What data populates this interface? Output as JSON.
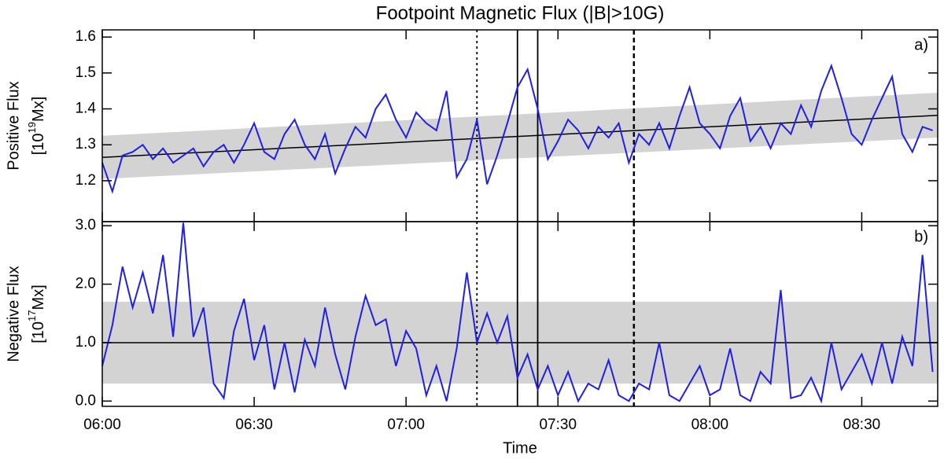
{
  "chart_data": [
    {
      "type": "line",
      "title": "Footpoint Magnetic Flux (|B|>10G)",
      "panel_label": "a)",
      "ylabel": "Positive Flux",
      "yunit": [
        "[10",
        "19",
        "Mx]"
      ],
      "x": [
        "06:00",
        "06:02",
        "06:04",
        "06:06",
        "06:08",
        "06:10",
        "06:12",
        "06:14",
        "06:16",
        "06:18",
        "06:20",
        "06:22",
        "06:24",
        "06:26",
        "06:28",
        "06:30",
        "06:32",
        "06:34",
        "06:36",
        "06:38",
        "06:40",
        "06:42",
        "06:44",
        "06:46",
        "06:48",
        "06:50",
        "06:52",
        "06:54",
        "06:56",
        "06:58",
        "07:00",
        "07:02",
        "07:04",
        "07:06",
        "07:08",
        "07:10",
        "07:12",
        "07:14",
        "07:16",
        "07:18",
        "07:20",
        "07:22",
        "07:24",
        "07:26",
        "07:28",
        "07:30",
        "07:32",
        "07:34",
        "07:36",
        "07:38",
        "07:40",
        "07:42",
        "07:44",
        "07:46",
        "07:48",
        "07:50",
        "07:52",
        "07:54",
        "07:56",
        "07:58",
        "08:00",
        "08:02",
        "08:04",
        "08:06",
        "08:08",
        "08:10",
        "08:12",
        "08:14",
        "08:16",
        "08:18",
        "08:20",
        "08:22",
        "08:24",
        "08:26",
        "08:28",
        "08:30",
        "08:32",
        "08:34",
        "08:36",
        "08:38",
        "08:40",
        "08:42",
        "08:44"
      ],
      "values": [
        1.25,
        1.17,
        1.27,
        1.28,
        1.3,
        1.26,
        1.29,
        1.25,
        1.27,
        1.29,
        1.24,
        1.28,
        1.3,
        1.25,
        1.3,
        1.36,
        1.28,
        1.26,
        1.33,
        1.37,
        1.3,
        1.26,
        1.33,
        1.22,
        1.29,
        1.35,
        1.32,
        1.4,
        1.44,
        1.37,
        1.32,
        1.39,
        1.36,
        1.34,
        1.45,
        1.21,
        1.26,
        1.37,
        1.19,
        1.27,
        1.36,
        1.46,
        1.51,
        1.4,
        1.26,
        1.31,
        1.37,
        1.34,
        1.29,
        1.35,
        1.32,
        1.36,
        1.25,
        1.33,
        1.3,
        1.36,
        1.29,
        1.38,
        1.46,
        1.36,
        1.33,
        1.29,
        1.38,
        1.43,
        1.31,
        1.35,
        1.29,
        1.36,
        1.33,
        1.41,
        1.35,
        1.45,
        1.52,
        1.43,
        1.33,
        1.3,
        1.37,
        1.43,
        1.49,
        1.33,
        1.28,
        1.35,
        1.34
      ],
      "color": "#1f1fe6",
      "xlim": [
        "06:00",
        "08:45"
      ],
      "xticks": [
        "06:00",
        "06:30",
        "07:00",
        "07:30",
        "08:00",
        "08:30"
      ],
      "ylim": [
        1.086,
        1.62
      ],
      "yticks": [
        1.2,
        1.3,
        1.4,
        1.5,
        1.6
      ],
      "fit_line": [
        1.265,
        1.382
      ],
      "fit_band_lower": [
        1.205,
        1.32
      ],
      "fit_band_upper": [
        1.325,
        1.445
      ],
      "band_color": "#d3d3d3",
      "vlines": [
        {
          "x": "07:14",
          "style": "dotted"
        },
        {
          "x": "07:22",
          "style": "solid"
        },
        {
          "x": "07:26",
          "style": "solid"
        },
        {
          "x": "07:45",
          "style": "dashed"
        }
      ]
    },
    {
      "type": "line",
      "panel_label": "b)",
      "ylabel": "Negative Flux",
      "yunit": [
        "[10",
        "17",
        "Mx]"
      ],
      "xlabel": "Time",
      "x": [
        "06:00",
        "06:02",
        "06:04",
        "06:06",
        "06:08",
        "06:10",
        "06:12",
        "06:14",
        "06:16",
        "06:18",
        "06:20",
        "06:22",
        "06:24",
        "06:26",
        "06:28",
        "06:30",
        "06:32",
        "06:34",
        "06:36",
        "06:38",
        "06:40",
        "06:42",
        "06:44",
        "06:46",
        "06:48",
        "06:50",
        "06:52",
        "06:54",
        "06:56",
        "06:58",
        "07:00",
        "07:02",
        "07:04",
        "07:06",
        "07:08",
        "07:10",
        "07:12",
        "07:14",
        "07:16",
        "07:18",
        "07:20",
        "07:22",
        "07:24",
        "07:26",
        "07:28",
        "07:30",
        "07:32",
        "07:34",
        "07:36",
        "07:38",
        "07:40",
        "07:42",
        "07:44",
        "07:46",
        "07:48",
        "07:50",
        "07:52",
        "07:54",
        "07:56",
        "07:58",
        "08:00",
        "08:02",
        "08:04",
        "08:06",
        "08:08",
        "08:10",
        "08:12",
        "08:14",
        "08:16",
        "08:18",
        "08:20",
        "08:22",
        "08:24",
        "08:26",
        "08:28",
        "08:30",
        "08:32",
        "08:34",
        "08:36",
        "08:38",
        "08:40",
        "08:42",
        "08:44"
      ],
      "values": [
        0.6,
        1.3,
        2.3,
        1.6,
        2.2,
        1.5,
        2.5,
        1.1,
        3.05,
        1.1,
        1.6,
        0.3,
        0.05,
        1.2,
        1.75,
        0.7,
        1.3,
        0.2,
        1.0,
        0.15,
        1.05,
        0.6,
        1.6,
        0.8,
        0.2,
        1.1,
        1.8,
        1.3,
        1.4,
        0.6,
        1.2,
        0.9,
        0.1,
        0.6,
        0.0,
        0.9,
        2.2,
        1.0,
        1.5,
        1.0,
        1.45,
        0.4,
        0.8,
        0.2,
        0.6,
        0.1,
        0.5,
        0.0,
        0.3,
        0.2,
        0.7,
        0.1,
        0.0,
        0.3,
        0.2,
        1.0,
        0.1,
        0.0,
        0.3,
        0.6,
        0.1,
        0.2,
        0.9,
        0.1,
        0.0,
        0.5,
        0.3,
        1.9,
        0.05,
        0.1,
        0.4,
        0.0,
        1.0,
        0.2,
        0.5,
        0.8,
        0.3,
        1.0,
        0.3,
        1.1,
        0.6,
        2.5,
        0.5
      ],
      "color": "#1f1fe6",
      "xlim": [
        "06:00",
        "08:45"
      ],
      "xticks": [
        "06:00",
        "06:30",
        "07:00",
        "07:30",
        "08:00",
        "08:30"
      ],
      "ylim": [
        -0.09,
        3.07
      ],
      "yticks": [
        {
          "value": 0,
          "label": "0.0"
        },
        {
          "value": 1,
          "label": "1.0"
        },
        {
          "value": 2,
          "label": "2.0"
        },
        {
          "value": 3,
          "label": "3.0"
        }
      ],
      "fit_line": [
        1.0,
        1.0
      ],
      "fit_band_lower": [
        0.3,
        0.3
      ],
      "fit_band_upper": [
        1.7,
        1.7
      ],
      "band_color": "#d3d3d3",
      "vlines": [
        {
          "x": "07:14",
          "style": "dotted"
        },
        {
          "x": "07:22",
          "style": "solid"
        },
        {
          "x": "07:26",
          "style": "solid"
        },
        {
          "x": "07:45",
          "style": "dashed"
        }
      ]
    }
  ]
}
